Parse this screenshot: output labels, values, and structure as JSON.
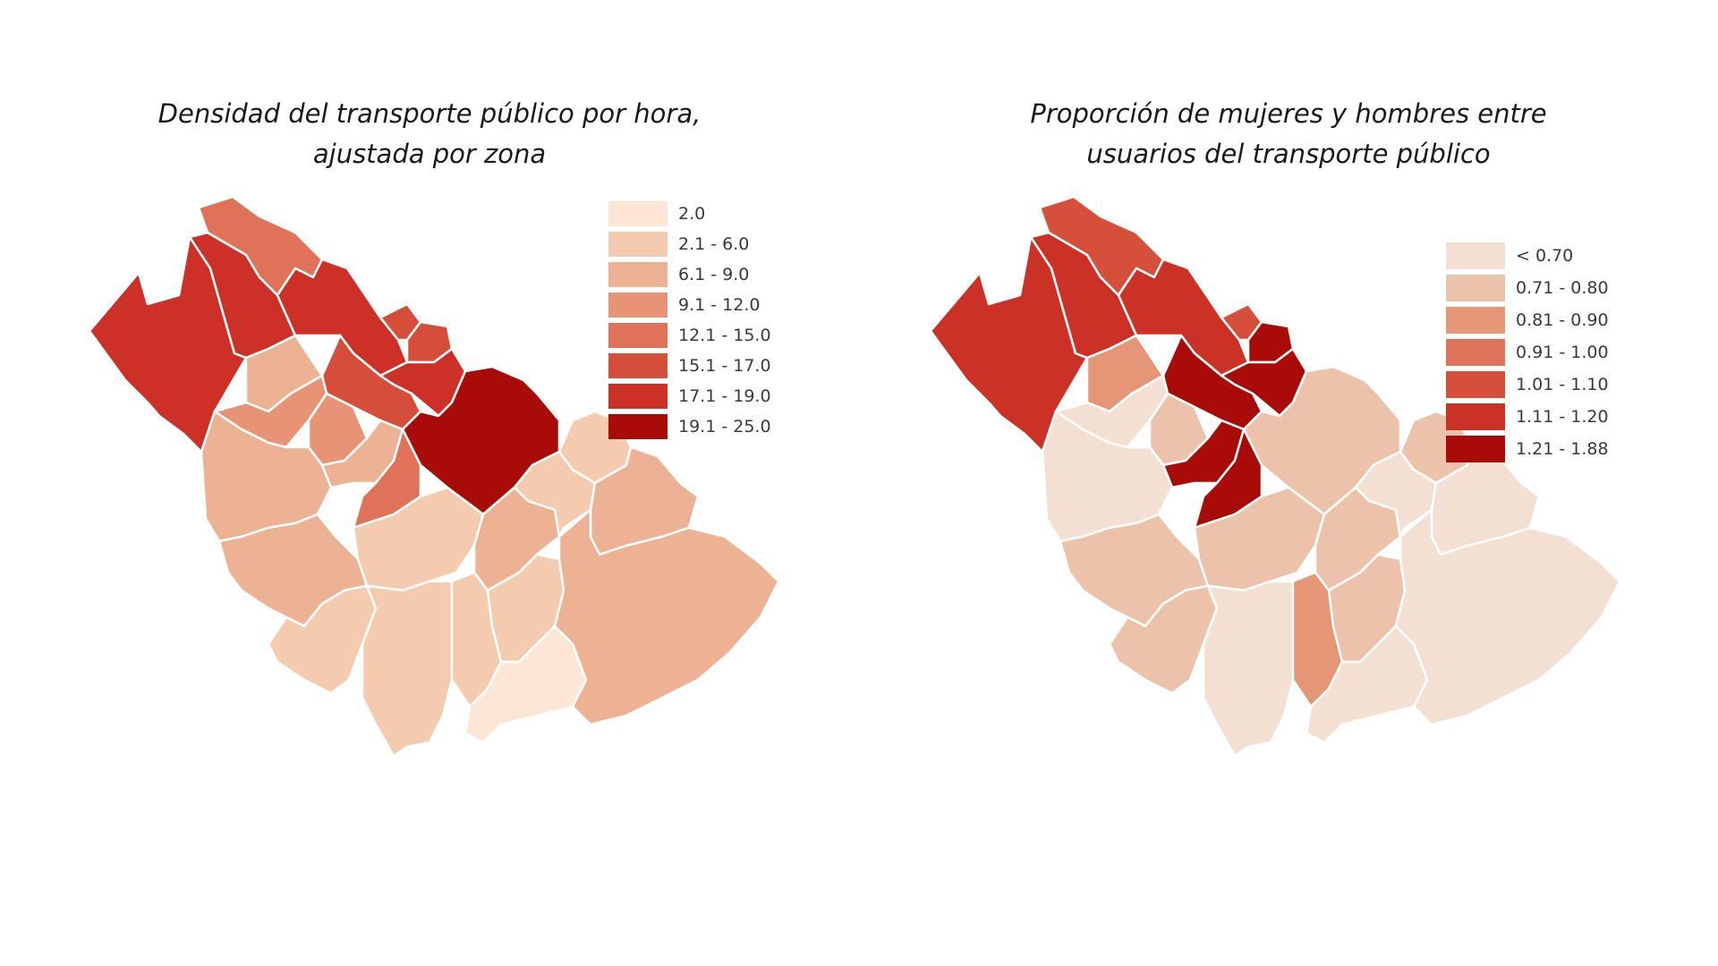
{
  "maps": [
    {
      "title_line1": "Densidad del transporte público por hora,",
      "title_line2": "ajustada por zona",
      "legend": [
        {
          "label": "2.0",
          "color": "#fde6d5"
        },
        {
          "label": "2.1 - 6.0",
          "color": "#f5cbb0"
        },
        {
          "label": "6.1 - 9.0",
          "color": "#ecb293"
        },
        {
          "label": "9.1 - 12.0",
          "color": "#e79376"
        },
        {
          "label": "12.1 - 15.0",
          "color": "#df7258"
        },
        {
          "label": "15.1 - 17.0",
          "color": "#d54e3a"
        },
        {
          "label": "17.1 - 19.0",
          "color": "#cc3026"
        },
        {
          "label": "19.1 - 25.0",
          "color": "#a80b08"
        }
      ],
      "zones": [
        {
          "id": "nw-far",
          "class": 6
        },
        {
          "id": "nw-mid",
          "class": 6
        },
        {
          "id": "north-top",
          "class": 4
        },
        {
          "id": "north-strip",
          "class": 6
        },
        {
          "id": "small-a",
          "class": 5
        },
        {
          "id": "small-b",
          "class": 5
        },
        {
          "id": "small-c",
          "class": 6
        },
        {
          "id": "small-d",
          "class": 5
        },
        {
          "id": "center-dark",
          "class": 7
        },
        {
          "id": "c-peach-1",
          "class": 2
        },
        {
          "id": "c-salmon-1",
          "class": 3
        },
        {
          "id": "c-salmon-2",
          "class": 3
        },
        {
          "id": "c-peach-2",
          "class": 2
        },
        {
          "id": "c-salmon-3",
          "class": 4
        },
        {
          "id": "west-1",
          "class": 2
        },
        {
          "id": "west-2",
          "class": 2
        },
        {
          "id": "center-light",
          "class": 1
        },
        {
          "id": "south-1",
          "class": 1
        },
        {
          "id": "south-2",
          "class": 1
        },
        {
          "id": "south-3",
          "class": 1
        },
        {
          "id": "south-4",
          "class": 1
        },
        {
          "id": "south-5",
          "class": 0
        },
        {
          "id": "east-1",
          "class": 2
        },
        {
          "id": "east-2",
          "class": 1
        },
        {
          "id": "east-3",
          "class": 1
        },
        {
          "id": "east-4",
          "class": 2
        },
        {
          "id": "east-5",
          "class": 2
        }
      ]
    },
    {
      "title_line1": "Proporción de mujeres y hombres entre",
      "title_line2": "usuarios del transporte público",
      "legend": [
        {
          "label": "< 0.70",
          "color": "#f3e0d3"
        },
        {
          "label": "0.71 - 0.80",
          "color": "#ecc3aa"
        },
        {
          "label": "0.81 - 0.90",
          "color": "#e49676"
        },
        {
          "label": "0.91 - 1.00",
          "color": "#dd7459"
        },
        {
          "label": "1.01 - 1.10",
          "color": "#d54f3b"
        },
        {
          "label": "1.11 - 1.20",
          "color": "#cc3126"
        },
        {
          "label": "1.21 - 1.88",
          "color": "#a80b08"
        }
      ],
      "zones": [
        {
          "id": "nw-far",
          "class": 5
        },
        {
          "id": "nw-mid",
          "class": 5
        },
        {
          "id": "north-top",
          "class": 4
        },
        {
          "id": "north-strip",
          "class": 5
        },
        {
          "id": "small-a",
          "class": 4
        },
        {
          "id": "small-b",
          "class": 6
        },
        {
          "id": "small-c",
          "class": 6
        },
        {
          "id": "small-d",
          "class": 6
        },
        {
          "id": "center-dark",
          "class": 1
        },
        {
          "id": "c-peach-1",
          "class": 2
        },
        {
          "id": "c-salmon-1",
          "class": 0
        },
        {
          "id": "c-salmon-2",
          "class": 1
        },
        {
          "id": "c-peach-2",
          "class": 6
        },
        {
          "id": "c-salmon-3",
          "class": 6
        },
        {
          "id": "west-1",
          "class": 0
        },
        {
          "id": "west-2",
          "class": 1
        },
        {
          "id": "center-light",
          "class": 1
        },
        {
          "id": "south-1",
          "class": 1
        },
        {
          "id": "south-2",
          "class": 0
        },
        {
          "id": "south-3",
          "class": 2
        },
        {
          "id": "south-4",
          "class": 1
        },
        {
          "id": "south-5",
          "class": 0
        },
        {
          "id": "east-1",
          "class": 1
        },
        {
          "id": "east-2",
          "class": 0
        },
        {
          "id": "east-3",
          "class": 1
        },
        {
          "id": "east-4",
          "class": 0
        },
        {
          "id": "east-5",
          "class": 0
        }
      ]
    }
  ]
}
